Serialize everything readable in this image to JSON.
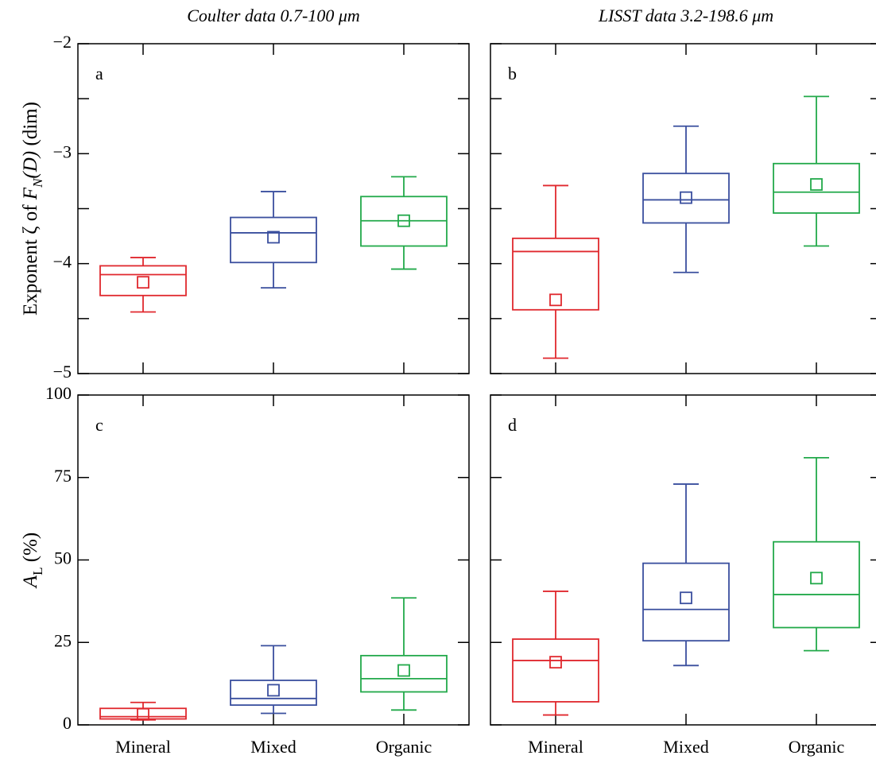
{
  "chart_data": [
    {
      "type": "box",
      "label": "a",
      "title": "Coulter data 0.7-100 μm",
      "ylabel": [
        "Exponent ζ of ",
        "F",
        "N",
        "(D)",
        " (dim)"
      ],
      "ylim": [
        -5,
        -2
      ],
      "yticks": [
        {
          "value": -2,
          "label": "−2"
        },
        {
          "value": -3,
          "label": "−3"
        },
        {
          "value": -4,
          "label": "−4"
        },
        {
          "value": -5,
          "label": "−5"
        }
      ],
      "minor_yticks": [
        -2.5,
        -3.5,
        -4.5
      ],
      "boxes": [
        {
          "color": "#e0282e",
          "whisker_low": -4.44,
          "q1": -4.29,
          "median": -4.1,
          "q3": -4.02,
          "whisker_high": -3.945,
          "mean": -4.17
        },
        {
          "color": "#3a4f9e",
          "whisker_low": -4.22,
          "q1": -3.99,
          "median": -3.72,
          "q3": -3.58,
          "whisker_high": -3.345,
          "mean": -3.76
        },
        {
          "color": "#22a94a",
          "whisker_low": -4.05,
          "q1": -3.84,
          "median": -3.61,
          "q3": -3.39,
          "whisker_high": -3.21,
          "mean": -3.61
        }
      ]
    },
    {
      "type": "box",
      "label": "b",
      "title": "LISST data 3.2-198.6 μm",
      "ylim": [
        -5,
        -2
      ],
      "yticks": [
        -2,
        -3,
        -4,
        -5
      ],
      "minor_yticks": [
        -2.5,
        -3.5,
        -4.5
      ],
      "boxes": [
        {
          "color": "#e0282e",
          "whisker_low": -4.86,
          "q1": -4.42,
          "median": -3.89,
          "q3": -3.77,
          "whisker_high": -3.29,
          "mean": -4.33
        },
        {
          "color": "#3a4f9e",
          "whisker_low": -4.08,
          "q1": -3.63,
          "median": -3.42,
          "q3": -3.18,
          "whisker_high": -2.75,
          "mean": -3.4
        },
        {
          "color": "#22a94a",
          "whisker_low": -3.84,
          "q1": -3.54,
          "median": -3.35,
          "q3": -3.09,
          "whisker_high": -2.48,
          "mean": -3.28
        }
      ]
    },
    {
      "type": "box",
      "label": "c",
      "ylabel": [
        "A",
        "L",
        " (%)"
      ],
      "categories": [
        "Mineral",
        "Mixed",
        "Organic"
      ],
      "ylim": [
        0,
        100
      ],
      "yticks": [
        0,
        25,
        50,
        75,
        100
      ],
      "boxes": [
        {
          "color": "#e0282e",
          "whisker_low": 1.5,
          "q1": 1.8,
          "median": 2.5,
          "q3": 5,
          "whisker_high": 6.8,
          "mean": 3.2
        },
        {
          "color": "#3a4f9e",
          "whisker_low": 3.5,
          "q1": 6,
          "median": 8,
          "q3": 13.5,
          "whisker_high": 24,
          "mean": 10.5
        },
        {
          "color": "#22a94a",
          "whisker_low": 4.5,
          "q1": 10,
          "median": 14,
          "q3": 21,
          "whisker_high": 38.5,
          "mean": 16.5
        }
      ]
    },
    {
      "type": "box",
      "label": "d",
      "categories": [
        "Mineral",
        "Mixed",
        "Organic"
      ],
      "ylim": [
        0,
        100
      ],
      "yticks": [
        0,
        25,
        50,
        75,
        100
      ],
      "boxes": [
        {
          "color": "#e0282e",
          "whisker_low": 3,
          "q1": 7,
          "median": 19.5,
          "q3": 26,
          "whisker_high": 40.5,
          "mean": 19
        },
        {
          "color": "#3a4f9e",
          "whisker_low": 18,
          "q1": 25.5,
          "median": 35,
          "q3": 49,
          "whisker_high": 73,
          "mean": 38.5
        },
        {
          "color": "#22a94a",
          "whisker_low": 22.5,
          "q1": 29.5,
          "median": 39.5,
          "q3": 55.5,
          "whisker_high": 81,
          "mean": 44.5
        }
      ]
    }
  ]
}
